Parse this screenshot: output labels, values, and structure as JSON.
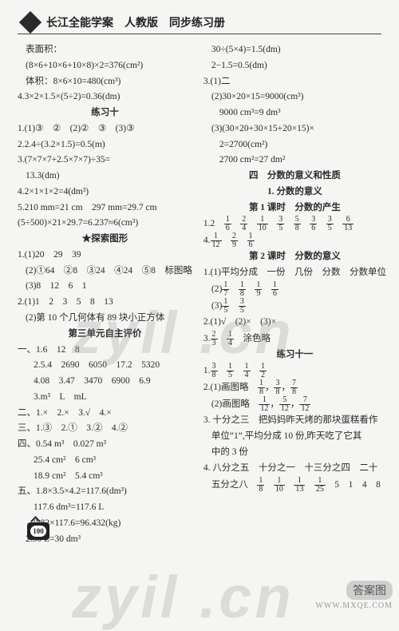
{
  "header": {
    "title": "长江全能学案　人教版　同步练习册"
  },
  "page_number": "100",
  "watermark": "zyil .cn",
  "corner": {
    "badge": "答案图",
    "url": "WWW.MXQE.COM"
  },
  "left": [
    {
      "cls": "indent",
      "t": "表面积："
    },
    {
      "cls": "indent",
      "t": "(8×6+10×6+10×8)×2=376(cm²)"
    },
    {
      "cls": "indent",
      "t": "体积：8×6×10=480(cm³)"
    },
    {
      "cls": "",
      "t": "4.3×2×1.5×(5÷2)=0.36(dm)"
    },
    {
      "cls": "center",
      "t": "练习十"
    },
    {
      "cls": "",
      "t": "1.(1)③　②　(2)②　③　(3)③"
    },
    {
      "cls": "",
      "t": "2.2.4÷(3.2×1.5)=0.5(m)"
    },
    {
      "cls": "",
      "t": "3.(7×7×7+2.5×7×7)÷35="
    },
    {
      "cls": "indent",
      "t": "13.3(dm)"
    },
    {
      "cls": "",
      "t": "4.2×1×1×2=4(dm³)"
    },
    {
      "cls": "",
      "t": "5.210 mm=21 cm　297 mm=29.7 cm"
    },
    {
      "cls": "",
      "t": "(5÷500)×21×29.7=6.237≈6(cm³)"
    },
    {
      "cls": "center",
      "t": "★探索图形"
    },
    {
      "cls": "",
      "t": "1.(1)20　29　39"
    },
    {
      "cls": "indent",
      "t": "(2)①64　②8　③24　④24　⑤8　标图略"
    },
    {
      "cls": "indent",
      "t": "(3)8　12　6　1"
    },
    {
      "cls": "",
      "t": "2.(1)1　2　3　5　8　13"
    },
    {
      "cls": "indent",
      "t": "(2)第 10 个几何体有 89 块小正方体"
    },
    {
      "cls": "center",
      "t": "第三单元自主评价"
    },
    {
      "cls": "",
      "t": "一、1.6　12　8"
    },
    {
      "cls": "indent2",
      "t": "2.5.4　2690　6050　17.2　5320"
    },
    {
      "cls": "indent2",
      "t": "4.08　3.47　3470　6900　6.9"
    },
    {
      "cls": "indent2",
      "t": "3.m³　L　mL"
    },
    {
      "cls": "",
      "t": "二、1.×　2.×　3.√　4.×"
    },
    {
      "cls": "",
      "t": "三、1.③　2.①　3.②　4.②"
    },
    {
      "cls": "",
      "t": "四、0.54 m³　0.027 m³"
    },
    {
      "cls": "indent2",
      "t": "25.4 cm²　6 cm³"
    },
    {
      "cls": "indent2",
      "t": "18.9 cm²　5.4 cm³"
    },
    {
      "cls": "",
      "t": "五、1.8×3.5×4.2=117.6(dm³)"
    },
    {
      "cls": "indent2",
      "t": "117.6 dm³=117.6 L"
    },
    {
      "cls": "indent2",
      "t": "0.82×117.6=96.432(kg)"
    },
    {
      "cls": "indent",
      "t": "2.30 L=30 dm³"
    }
  ],
  "right": [
    {
      "cls": "indent",
      "t": "30÷(5×4)=1.5(dm)"
    },
    {
      "cls": "indent",
      "t": "2−1.5=0.5(dm)"
    },
    {
      "cls": "",
      "t": "3.(1)二"
    },
    {
      "cls": "indent",
      "t": "(2)30×20×15=9000(cm³)"
    },
    {
      "cls": "indent2",
      "t": "9000 cm³=9 dm³"
    },
    {
      "cls": "indent",
      "t": "(3)(30×20+30×15+20×15)×"
    },
    {
      "cls": "indent2",
      "t": "2=2700(cm²)"
    },
    {
      "cls": "indent2",
      "t": "2700 cm²=27 dm²"
    },
    {
      "cls": "center",
      "t": "四　分数的意义和性质"
    },
    {
      "cls": "center",
      "t": "1. 分数的意义"
    },
    {
      "cls": "center",
      "t": "第 1 课时　分数的产生"
    },
    {
      "cls": "",
      "t": "1.2　<f>1/6</f>　<f>2/4</f>　<f>1/10</f>　<f>3/5</f>　<f>5/8</f>　<f>3/6</f>　<f>3/5</f>　<f>6/13</f>"
    },
    {
      "cls": "",
      "t": "4.<f>1/12</f>　<f>2/9</f>　<f>1/6</f>"
    },
    {
      "cls": "center",
      "t": "第 2 课时　分数的意义"
    },
    {
      "cls": "",
      "t": "1.(1)平均分成　一份　几份　分数　分数单位"
    },
    {
      "cls": "indent",
      "t": "(2)<f>1/7</f>　<f>1/8</f>　<f>1/9</f>　<f>1/6</f>"
    },
    {
      "cls": "indent",
      "t": "(3)<f>1/5</f>　<f>3/5</f>"
    },
    {
      "cls": "",
      "t": "2.(1)√　(2)×　(3)×"
    },
    {
      "cls": "",
      "t": "3.<f>2/3</f>　<f>1/4</f>　涂色略"
    },
    {
      "cls": "center",
      "t": "练习十一"
    },
    {
      "cls": "",
      "t": "1.<f>3/8</f>　<f>1/5</f>　<f>1/4</f>　<f>1/2</f>"
    },
    {
      "cls": "",
      "t": "2.(1)画图略　<f>1/8</f>，<f>3/8</f>，<f>7/8</f>"
    },
    {
      "cls": "indent",
      "t": "(2)画图略　<f>1/12</f>，<f>5/12</f>，<f>7/12</f>"
    },
    {
      "cls": "",
      "t": "3. 十分之三　把妈妈昨天烤的那块蛋糕看作"
    },
    {
      "cls": "indent",
      "t": "单位“1”,平均分成 10 份,昨天吃了它其"
    },
    {
      "cls": "indent",
      "t": "中的 3 份"
    },
    {
      "cls": "",
      "t": "4. 八分之五　十分之一　十三分之四　二十"
    },
    {
      "cls": "indent",
      "t": "五分之八　<f>1/8</f>　<f>1/10</f>　<f>1/13</f>　<f>1/25</f>　5　1　4　8"
    }
  ]
}
